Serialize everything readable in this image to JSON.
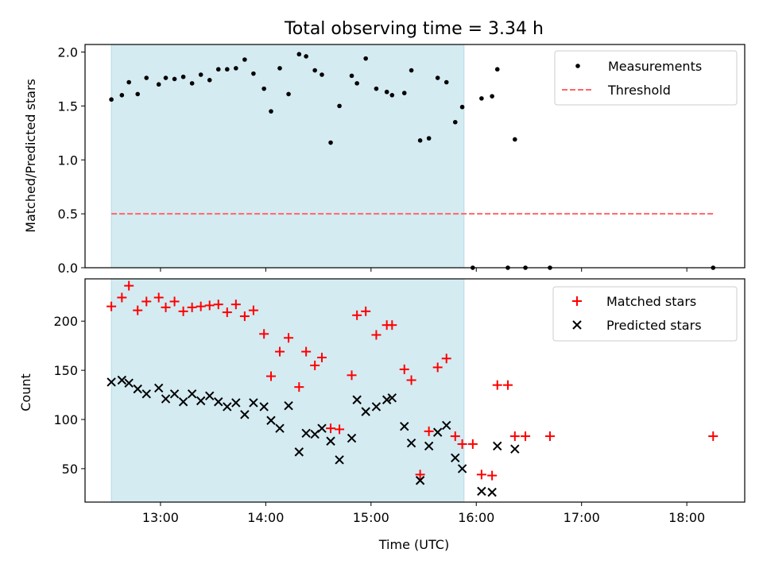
{
  "title": "Total observing time = 3.34 h",
  "colors": {
    "shade": "#add8e6",
    "threshold": "#ff6666",
    "matched": "#ff0000",
    "predicted": "#000000",
    "points": "#000000"
  },
  "chart_data": [
    {
      "type": "scatter",
      "ylabel": "Matched/Predicted stars",
      "xlim": [
        "12:17",
        "18:33"
      ],
      "ylim": [
        0,
        2.07
      ],
      "yticks": [
        "0.0",
        "0.5",
        "1.0",
        "1.5",
        "2.0"
      ],
      "xticklabels_shown": false,
      "shaded_region": [
        "12:32",
        "15:53"
      ],
      "legend_position": "top-right",
      "threshold": {
        "name": "Threshold",
        "value": 0.5,
        "style": "dashed",
        "x": [
          "12:32",
          "18:15"
        ]
      },
      "series": [
        {
          "name": "Measurements",
          "marker": "dot",
          "points": [
            [
              "12:32",
              1.56
            ],
            [
              "12:38",
              1.6
            ],
            [
              "12:42",
              1.72
            ],
            [
              "12:47",
              1.61
            ],
            [
              "12:52",
              1.76
            ],
            [
              "12:59",
              1.7
            ],
            [
              "13:03",
              1.76
            ],
            [
              "13:08",
              1.75
            ],
            [
              "13:13",
              1.77
            ],
            [
              "13:18",
              1.71
            ],
            [
              "13:23",
              1.79
            ],
            [
              "13:28",
              1.74
            ],
            [
              "13:33",
              1.84
            ],
            [
              "13:38",
              1.84
            ],
            [
              "13:43",
              1.85
            ],
            [
              "13:48",
              1.93
            ],
            [
              "13:53",
              1.8
            ],
            [
              "13:59",
              1.66
            ],
            [
              "14:03",
              1.45
            ],
            [
              "14:08",
              1.85
            ],
            [
              "14:13",
              1.61
            ],
            [
              "14:19",
              1.98
            ],
            [
              "14:23",
              1.96
            ],
            [
              "14:28",
              1.83
            ],
            [
              "14:32",
              1.79
            ],
            [
              "14:37",
              1.16
            ],
            [
              "14:42",
              1.5
            ],
            [
              "14:49",
              1.78
            ],
            [
              "14:52",
              1.71
            ],
            [
              "14:57",
              1.94
            ],
            [
              "15:03",
              1.66
            ],
            [
              "15:09",
              1.63
            ],
            [
              "15:12",
              1.6
            ],
            [
              "15:19",
              1.62
            ],
            [
              "15:23",
              1.83
            ],
            [
              "15:28",
              1.18
            ],
            [
              "15:33",
              1.2
            ],
            [
              "15:38",
              1.76
            ],
            [
              "15:43",
              1.72
            ],
            [
              "15:48",
              1.35
            ],
            [
              "15:52",
              1.49
            ],
            [
              "15:58",
              0.0
            ],
            [
              "16:03",
              1.57
            ],
            [
              "16:09",
              1.59
            ],
            [
              "16:12",
              1.84
            ],
            [
              "16:18",
              0.0
            ],
            [
              "16:22",
              1.19
            ],
            [
              "16:28",
              0.0
            ],
            [
              "16:42",
              0.0
            ],
            [
              "18:15",
              0.0
            ]
          ]
        }
      ]
    },
    {
      "type": "scatter",
      "xlabel": "Time (UTC)",
      "ylabel": "Count",
      "xlim": [
        "12:17",
        "18:33"
      ],
      "ylim": [
        16,
        243
      ],
      "yticks": [
        "50",
        "100",
        "150",
        "200"
      ],
      "xticks": [
        "13:00",
        "14:00",
        "15:00",
        "16:00",
        "17:00",
        "18:00"
      ],
      "shaded_region": [
        "12:32",
        "15:53"
      ],
      "legend_position": "top-right",
      "series": [
        {
          "name": "Matched stars",
          "marker": "plus",
          "points": [
            [
              "12:32",
              215
            ],
            [
              "12:38",
              224
            ],
            [
              "12:42",
              236
            ],
            [
              "12:47",
              211
            ],
            [
              "12:52",
              220
            ],
            [
              "12:59",
              224
            ],
            [
              "13:03",
              214
            ],
            [
              "13:08",
              220
            ],
            [
              "13:13",
              210
            ],
            [
              "13:18",
              214
            ],
            [
              "13:23",
              215
            ],
            [
              "13:28",
              216
            ],
            [
              "13:33",
              217
            ],
            [
              "13:38",
              209
            ],
            [
              "13:43",
              217
            ],
            [
              "13:48",
              205
            ],
            [
              "13:53",
              211
            ],
            [
              "13:59",
              187
            ],
            [
              "14:03",
              144
            ],
            [
              "14:08",
              169
            ],
            [
              "14:13",
              183
            ],
            [
              "14:19",
              133
            ],
            [
              "14:23",
              169
            ],
            [
              "14:28",
              155
            ],
            [
              "14:32",
              163
            ],
            [
              "14:37",
              91
            ],
            [
              "14:42",
              90
            ],
            [
              "14:49",
              145
            ],
            [
              "14:52",
              206
            ],
            [
              "14:57",
              210
            ],
            [
              "15:03",
              186
            ],
            [
              "15:09",
              196
            ],
            [
              "15:12",
              196
            ],
            [
              "15:19",
              151
            ],
            [
              "15:23",
              140
            ],
            [
              "15:28",
              44
            ],
            [
              "15:33",
              88
            ],
            [
              "15:38",
              153
            ],
            [
              "15:43",
              162
            ],
            [
              "15:48",
              83
            ],
            [
              "15:52",
              75
            ],
            [
              "15:58",
              75
            ],
            [
              "16:03",
              44
            ],
            [
              "16:09",
              43
            ],
            [
              "16:12",
              135
            ],
            [
              "16:18",
              135
            ],
            [
              "16:22",
              83
            ],
            [
              "16:28",
              83
            ],
            [
              "16:42",
              83
            ],
            [
              "18:15",
              83
            ]
          ]
        },
        {
          "name": "Predicted stars",
          "marker": "x",
          "points": [
            [
              "12:32",
              138
            ],
            [
              "12:38",
              140
            ],
            [
              "12:42",
              137
            ],
            [
              "12:47",
              131
            ],
            [
              "12:52",
              126
            ],
            [
              "12:59",
              132
            ],
            [
              "13:03",
              121
            ],
            [
              "13:08",
              126
            ],
            [
              "13:13",
              118
            ],
            [
              "13:18",
              126
            ],
            [
              "13:23",
              119
            ],
            [
              "13:28",
              124
            ],
            [
              "13:33",
              118
            ],
            [
              "13:38",
              113
            ],
            [
              "13:43",
              117
            ],
            [
              "13:48",
              105
            ],
            [
              "13:53",
              117
            ],
            [
              "13:59",
              113
            ],
            [
              "14:03",
              99
            ],
            [
              "14:08",
              91
            ],
            [
              "14:13",
              114
            ],
            [
              "14:19",
              67
            ],
            [
              "14:23",
              86
            ],
            [
              "14:28",
              85
            ],
            [
              "14:32",
              91
            ],
            [
              "14:37",
              78
            ],
            [
              "14:42",
              59
            ],
            [
              "14:49",
              81
            ],
            [
              "14:52",
              120
            ],
            [
              "14:57",
              108
            ],
            [
              "15:03",
              113
            ],
            [
              "15:09",
              120
            ],
            [
              "15:12",
              122
            ],
            [
              "15:19",
              93
            ],
            [
              "15:23",
              76
            ],
            [
              "15:28",
              38
            ],
            [
              "15:33",
              73
            ],
            [
              "15:38",
              87
            ],
            [
              "15:43",
              94
            ],
            [
              "15:48",
              61
            ],
            [
              "15:52",
              50
            ],
            [
              "16:03",
              27
            ],
            [
              "16:09",
              26
            ],
            [
              "16:12",
              73
            ],
            [
              "16:22",
              70
            ]
          ]
        }
      ]
    }
  ]
}
